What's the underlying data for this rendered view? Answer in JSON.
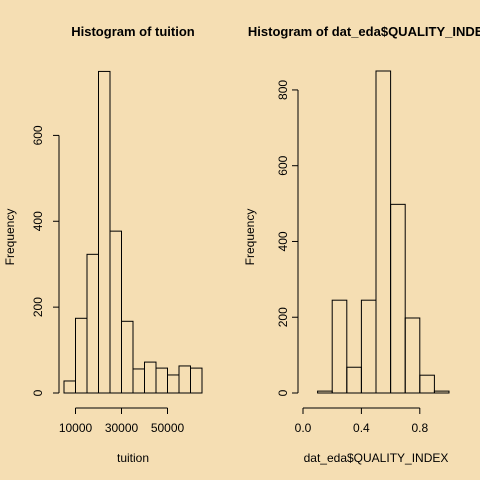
{
  "chart_data": [
    {
      "type": "histogram",
      "title": "Histogram of tuition",
      "x_label": "tuition",
      "y_label": "Frequency",
      "bins": [
        5000,
        10000,
        15000,
        20000,
        25000,
        30000,
        35000,
        40000,
        45000,
        50000,
        55000,
        60000,
        65000
      ],
      "values": [
        28,
        174,
        323,
        749,
        377,
        167,
        56,
        72,
        58,
        42,
        63,
        58
      ],
      "xlim": [
        5000,
        65000
      ],
      "ylim": [
        0,
        750
      ],
      "xticks": [
        10000,
        30000,
        50000
      ],
      "yticks": [
        0,
        200,
        400,
        600
      ]
    },
    {
      "type": "histogram",
      "title": "Histogram of dat_eda$QUALITY_INDEX",
      "x_label": "dat_eda$QUALITY_INDEX",
      "y_label": "Frequency",
      "bins": [
        0.1,
        0.2,
        0.3,
        0.4,
        0.5,
        0.6,
        0.7,
        0.8,
        0.9,
        1.0
      ],
      "values": [
        5,
        245,
        68,
        245,
        850,
        498,
        198,
        47,
        5
      ],
      "xlim": [
        0,
        1
      ],
      "ylim": [
        0,
        850
      ],
      "xticks": [
        {
          "value": 0,
          "label": "0.0"
        },
        0.4,
        0.8
      ],
      "yticks": [
        0,
        200,
        400,
        600,
        800
      ]
    }
  ]
}
